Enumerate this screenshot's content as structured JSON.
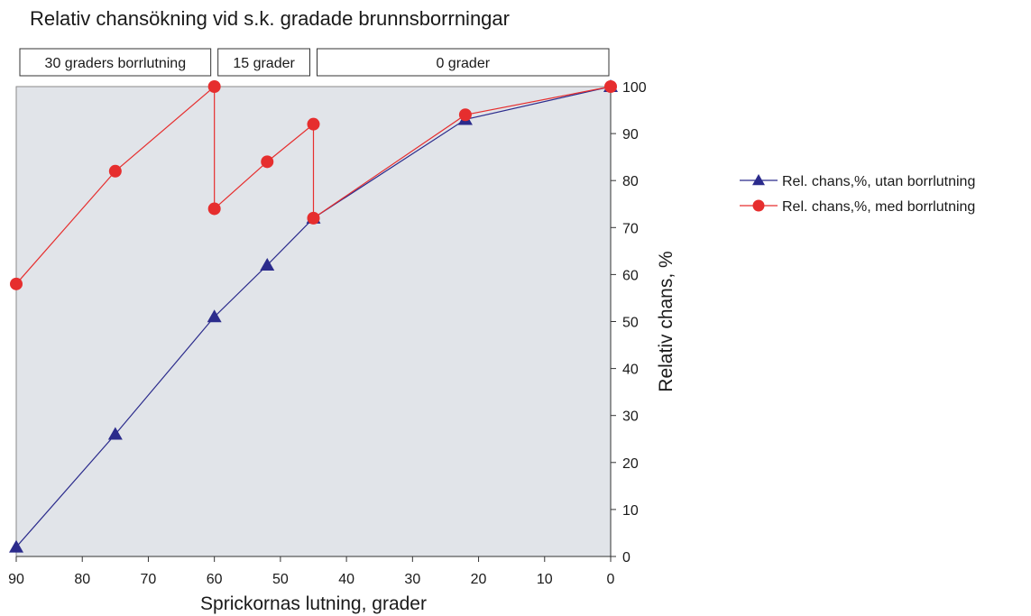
{
  "chart_data": {
    "type": "line",
    "title": "Relativ chansökning vid s.k. gradade brunnsborrningar",
    "xlabel": "Sprickornas lutning, grader",
    "ylabel": "Relativ chans, %",
    "xlim": [
      90,
      0
    ],
    "ylim": [
      0,
      100
    ],
    "x_reversed": true,
    "x_ticks": [
      "90",
      "80",
      "70",
      "60",
      "50",
      "40",
      "30",
      "20",
      "10",
      "0"
    ],
    "y_ticks": [
      "0",
      "10",
      "20",
      "30",
      "40",
      "50",
      "60",
      "70",
      "80",
      "90",
      "100"
    ],
    "bands": [
      {
        "label": "30 graders borrlutning",
        "x_from": 90,
        "x_to": 60
      },
      {
        "label": "15 grader",
        "x_from": 60,
        "x_to": 45
      },
      {
        "label": "0 grader",
        "x_from": 45,
        "x_to": 0
      }
    ],
    "series": [
      {
        "name": "Rel. chans,%, utan borrlutning",
        "color": "#2b2b8c",
        "marker": "triangle",
        "points": [
          [
            90,
            2
          ],
          [
            75,
            26
          ],
          [
            60,
            51
          ],
          [
            52,
            62
          ],
          [
            45,
            72
          ],
          [
            22,
            93
          ],
          [
            0,
            100
          ]
        ]
      },
      {
        "name": "Rel. chans,%, med borrlutning",
        "color": "#e62e2e",
        "marker": "circle",
        "points": [
          [
            90,
            58
          ],
          [
            75,
            82
          ],
          [
            60,
            100
          ],
          [
            60,
            74
          ],
          [
            52,
            84
          ],
          [
            45,
            92
          ],
          [
            45,
            72
          ],
          [
            22,
            94
          ],
          [
            0,
            100
          ]
        ]
      }
    ],
    "grid": false,
    "legend_position": "right",
    "plot_background": "#e1e4e9"
  }
}
